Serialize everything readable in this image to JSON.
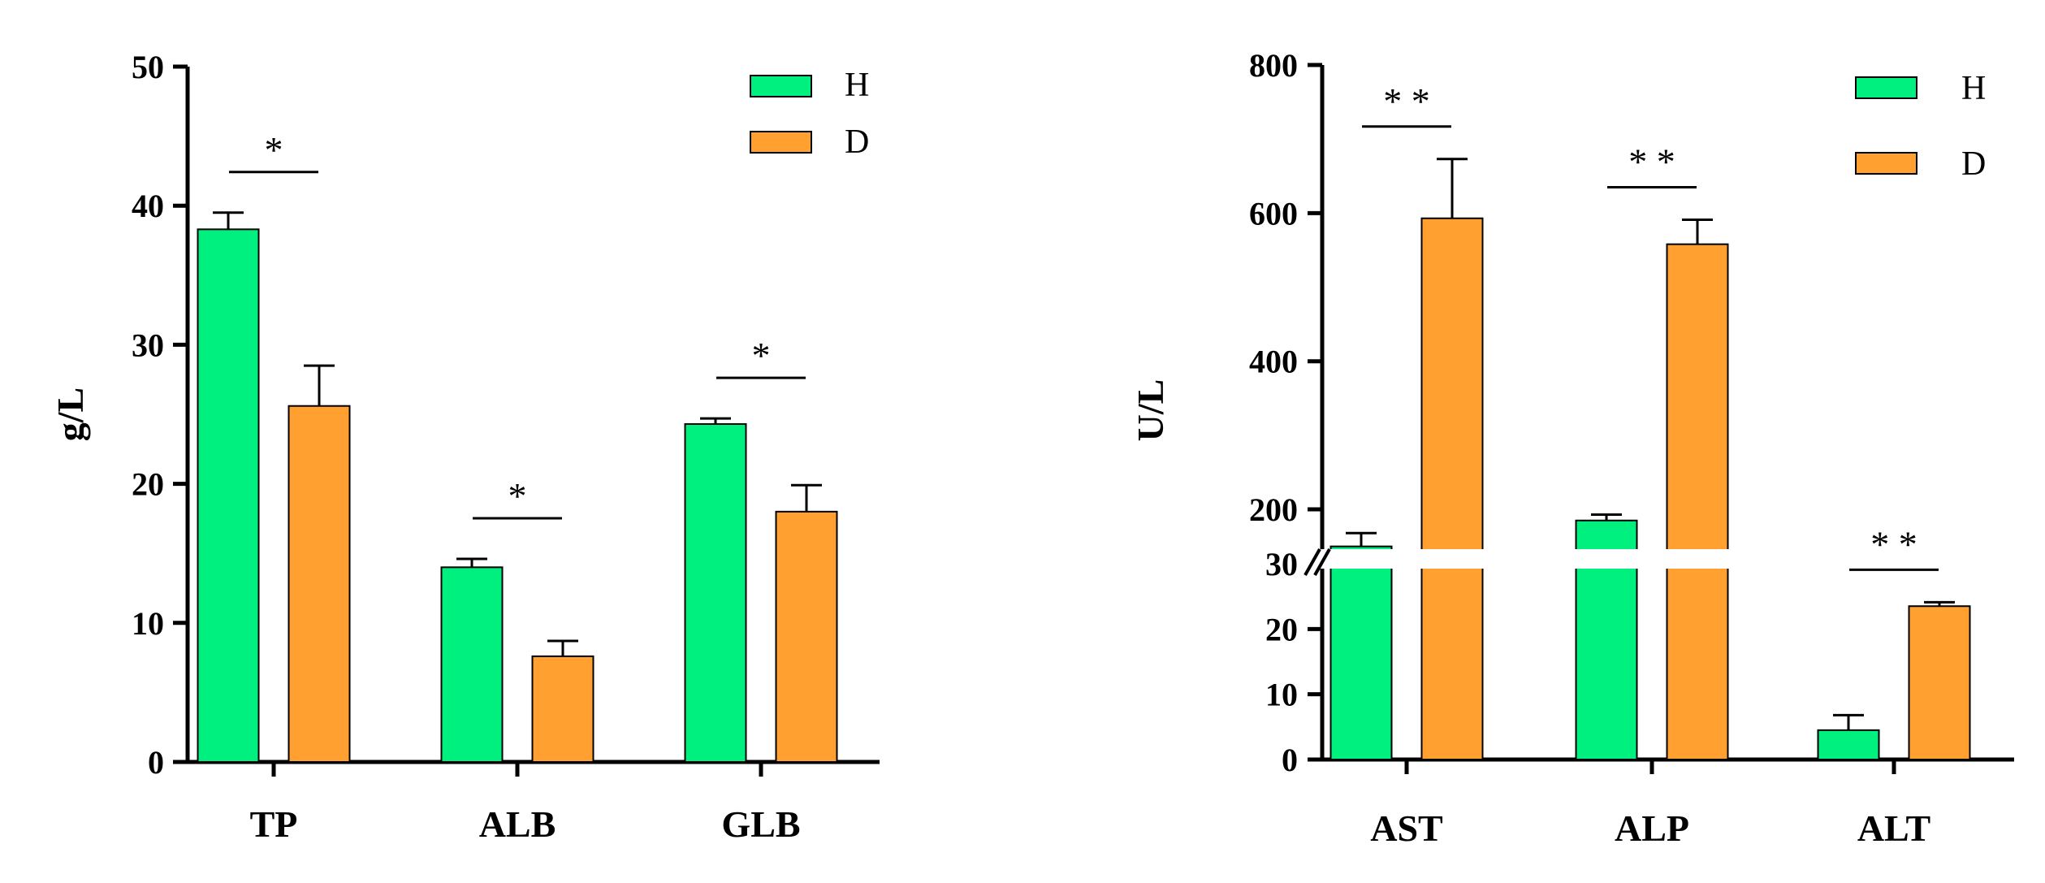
{
  "chart_data": [
    {
      "type": "bar",
      "ylabel": "g/L",
      "categories": [
        "TP",
        "ALB",
        "GLB"
      ],
      "ylim": [
        0,
        50
      ],
      "yticks": [
        0,
        10,
        20,
        30,
        40,
        50
      ],
      "series": [
        {
          "name": "H",
          "color": "#00f080",
          "values": [
            38.3,
            14.0,
            24.3
          ],
          "errors": [
            1.2,
            0.6,
            0.4
          ]
        },
        {
          "name": "D",
          "color": "#ffa030",
          "values": [
            25.6,
            7.6,
            18.0
          ],
          "errors": [
            2.9,
            1.1,
            1.9
          ]
        }
      ],
      "significance": [
        "*",
        "*",
        "*"
      ],
      "legend_position": "top-right"
    },
    {
      "type": "bar",
      "ylabel": "U/L",
      "categories": [
        "AST",
        "ALP",
        "ALT"
      ],
      "axis_break": true,
      "lower_ylim": [
        0,
        30
      ],
      "lower_yticks": [
        0,
        10,
        20,
        30
      ],
      "upper_ylim": [
        120,
        800
      ],
      "upper_yticks": [
        200,
        400,
        600,
        800
      ],
      "series": [
        {
          "name": "H",
          "color": "#00f080",
          "values": [
            150,
            185,
            4.5
          ],
          "errors": [
            18,
            8,
            2.3
          ]
        },
        {
          "name": "D",
          "color": "#ffa030",
          "values": [
            593,
            558,
            23.5
          ],
          "errors": [
            80,
            33,
            0.6
          ]
        }
      ],
      "significance": [
        "* *",
        "* *",
        "* *"
      ],
      "legend_position": "top-right"
    }
  ]
}
